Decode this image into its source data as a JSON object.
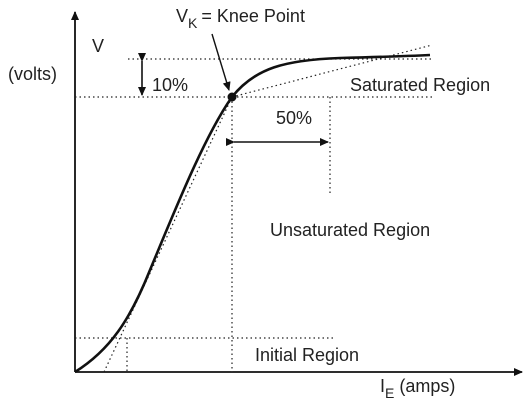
{
  "y_axis": {
    "symbol": "V",
    "unit": "(volts)"
  },
  "x_axis": {
    "symbol": "I",
    "subscript": "E",
    "unit": "(amps)"
  },
  "knee": {
    "symbol": "V",
    "subscript": "K",
    "text": "= Knee Point"
  },
  "labels": {
    "ten": "10%",
    "fifty": "50%",
    "saturated": "Saturated Region",
    "unsaturated": "Unsaturated Region",
    "initial": "Initial Region"
  }
}
